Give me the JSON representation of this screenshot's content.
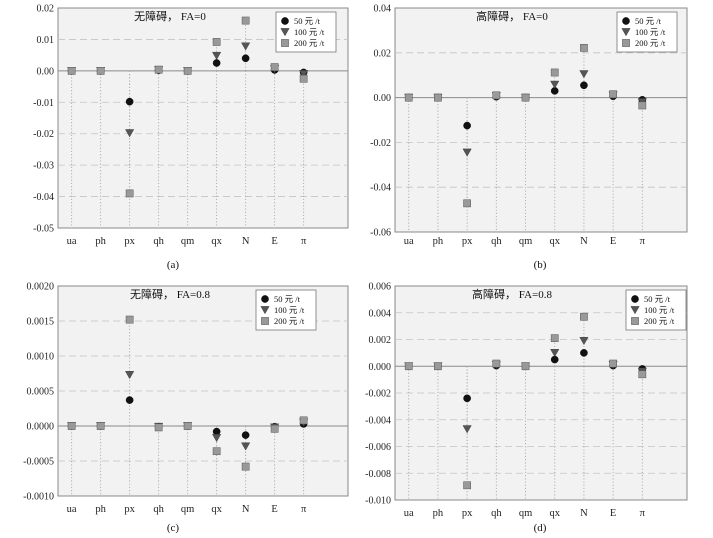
{
  "chart_data": [
    {
      "panel_label": "(a)",
      "type": "scatter",
      "title": "无障碍， FA=0",
      "categories": [
        "ua",
        "ph",
        "px",
        "qh",
        "qm",
        "qx",
        "N",
        "E",
        "π"
      ],
      "ylim": [
        -0.05,
        0.02
      ],
      "yticks": [
        -0.05,
        -0.04,
        -0.03,
        -0.02,
        -0.01,
        0,
        0.01,
        0.02
      ],
      "ytick_labels": [
        "-0.05",
        "-0.04",
        "-0.03",
        "-0.02",
        "-0.01",
        "0.00",
        "0.01",
        "0.02"
      ],
      "grid": true,
      "legend_position": "top-right",
      "series": [
        {
          "name": "50 元 /t",
          "marker": "circle",
          "color": "#111111",
          "values": [
            0,
            0,
            -0.0098,
            0.0002,
            0,
            0.0025,
            0.004,
            0.0003,
            -0.0005
          ]
        },
        {
          "name": "100 元 /t",
          "marker": "triangle",
          "color": "#555555",
          "values": [
            0,
            0,
            -0.0198,
            0.0003,
            0,
            0.0048,
            0.0078,
            0.0006,
            -0.001
          ]
        },
        {
          "name": "200 元 /t",
          "marker": "square",
          "color": "#999999",
          "values": [
            0,
            0,
            -0.039,
            0.0004,
            0,
            0.0092,
            0.016,
            0.0012,
            -0.0025
          ]
        }
      ]
    },
    {
      "panel_label": "(b)",
      "type": "scatter",
      "title": "高障碍， FA=0",
      "categories": [
        "ua",
        "ph",
        "px",
        "qh",
        "qm",
        "qx",
        "N",
        "E",
        "π"
      ],
      "ylim": [
        -0.06,
        0.04
      ],
      "yticks": [
        -0.06,
        -0.04,
        -0.02,
        0,
        0.02,
        0.04
      ],
      "ytick_labels": [
        "-0.06",
        "-0.04",
        "-0.02",
        "0.00",
        "0.02",
        "0.04"
      ],
      "grid": true,
      "legend_position": "top-right",
      "series": [
        {
          "name": "50 元 /t",
          "marker": "circle",
          "color": "#111111",
          "values": [
            0,
            0,
            -0.0125,
            0.0004,
            0,
            0.003,
            0.0055,
            0.0006,
            -0.001
          ]
        },
        {
          "name": "100 元 /t",
          "marker": "triangle",
          "color": "#555555",
          "values": [
            0,
            0,
            -0.0245,
            0.0007,
            0,
            0.0058,
            0.0105,
            0.001,
            -0.002
          ]
        },
        {
          "name": "200 元 /t",
          "marker": "square",
          "color": "#999999",
          "values": [
            0,
            0,
            -0.0472,
            0.001,
            0,
            0.0112,
            0.0222,
            0.0015,
            -0.0035
          ]
        }
      ]
    },
    {
      "panel_label": "(c)",
      "type": "scatter",
      "title": "无障碍， FA=0.8",
      "categories": [
        "ua",
        "ph",
        "px",
        "qh",
        "qm",
        "qx",
        "N",
        "E",
        "π"
      ],
      "ylim": [
        -0.001,
        0.002
      ],
      "yticks": [
        -0.001,
        -0.0005,
        0,
        0.0005,
        0.001,
        0.0015,
        0.002
      ],
      "ytick_labels": [
        "-0.0010",
        "-0.0005",
        "0.0000",
        "0.0005",
        "0.0010",
        "0.0015",
        "0.0020"
      ],
      "grid": true,
      "legend_position": "top-right",
      "series": [
        {
          "name": "50 元 /t",
          "marker": "circle",
          "color": "#111111",
          "values": [
            0,
            0,
            0.00037,
            -1e-05,
            0,
            -8e-05,
            -0.00013,
            -1e-05,
            3e-05
          ]
        },
        {
          "name": "100 元 /t",
          "marker": "triangle",
          "color": "#555555",
          "values": [
            0,
            0,
            0.00073,
            -1e-05,
            0,
            -0.00017,
            -0.00029,
            -2e-05,
            5e-05
          ]
        },
        {
          "name": "200 元 /t",
          "marker": "square",
          "color": "#999999",
          "values": [
            0,
            0,
            0.00152,
            -2e-05,
            0,
            -0.00036,
            -0.00058,
            -4e-05,
            8e-05
          ]
        }
      ]
    },
    {
      "panel_label": "(d)",
      "type": "scatter",
      "title": "高障碍， FA=0.8",
      "categories": [
        "ua",
        "ph",
        "px",
        "qh",
        "qm",
        "qx",
        "N",
        "E",
        "π"
      ],
      "ylim": [
        -0.01,
        0.006
      ],
      "yticks": [
        -0.01,
        -0.008,
        -0.006,
        -0.004,
        -0.002,
        0,
        0.002,
        0.004,
        0.006
      ],
      "ytick_labels": [
        "-0.010",
        "-0.008",
        "-0.006",
        "-0.004",
        "-0.002",
        "0.000",
        "0.002",
        "0.004",
        "0.006"
      ],
      "grid": true,
      "legend_position": "top-right",
      "series": [
        {
          "name": "50 元 /t",
          "marker": "circle",
          "color": "#111111",
          "values": [
            0,
            0,
            -0.0024,
            5e-05,
            0,
            0.0005,
            0.001,
            5e-05,
            -0.0002
          ]
        },
        {
          "name": "100 元 /t",
          "marker": "triangle",
          "color": "#555555",
          "values": [
            0,
            0,
            -0.0047,
            0.0001,
            0,
            0.001,
            0.0019,
            0.0001,
            -0.0004
          ]
        },
        {
          "name": "200 元 /t",
          "marker": "square",
          "color": "#999999",
          "values": [
            0,
            0,
            -0.0089,
            0.0002,
            0,
            0.0021,
            0.0037,
            0.0002,
            -0.0006
          ]
        }
      ]
    }
  ]
}
